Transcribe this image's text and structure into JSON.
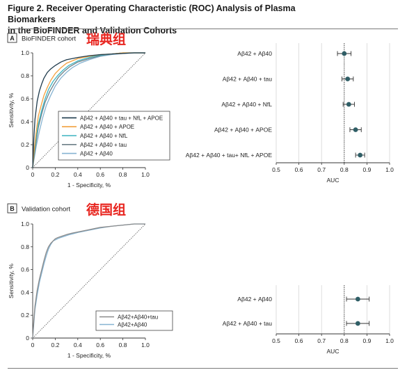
{
  "figure": {
    "title_line1": "Figure 2. Receiver Operating Characteristic (ROC) Analysis of Plasma Biomarkers",
    "title_line2": "in the BioFINDER and Validation Cohorts"
  },
  "panels": {
    "A": {
      "letter": "A",
      "name": "BioFINDER cohort",
      "annotation": "瑞典组"
    },
    "B": {
      "letter": "B",
      "name": "Validation cohort",
      "annotation": "德国组"
    }
  },
  "colors": {
    "annotation": "#e8251f",
    "point": "#2f5e66",
    "diagonal": "#555555",
    "gridline": "#d6d6d6"
  },
  "chart_data": [
    {
      "id": "A-roc",
      "type": "line",
      "xlabel": "1 - Specificity, %",
      "ylabel": "Sensitivity, %",
      "xlim": [
        0,
        1
      ],
      "ylim": [
        0,
        1
      ],
      "xticks": [
        "0",
        "0.2",
        "0.4",
        "0.6",
        "0.8",
        "1.0"
      ],
      "yticks": [
        "0",
        "0.2",
        "0.4",
        "0.6",
        "0.8",
        "1.0"
      ],
      "legend_position": "bottom-right",
      "reference_line": "diagonal",
      "series": [
        {
          "name": "Aβ42 + Aβ40 + tau + NfL + APOE",
          "color": "#1e3a4c",
          "x": [
            0,
            0.01,
            0.02,
            0.04,
            0.06,
            0.08,
            0.1,
            0.13,
            0.16,
            0.2,
            0.25,
            0.3,
            0.4,
            0.5,
            0.6,
            0.7,
            0.8,
            0.9,
            1.0
          ],
          "y": [
            0,
            0.25,
            0.42,
            0.58,
            0.67,
            0.73,
            0.78,
            0.83,
            0.86,
            0.89,
            0.92,
            0.94,
            0.96,
            0.975,
            0.985,
            0.99,
            0.995,
            1.0,
            1.0
          ]
        },
        {
          "name": "Aβ42 + Aβ40 + APOE",
          "color": "#f2a03d",
          "x": [
            0,
            0.01,
            0.03,
            0.05,
            0.08,
            0.1,
            0.13,
            0.16,
            0.2,
            0.25,
            0.3,
            0.4,
            0.5,
            0.6,
            0.7,
            0.8,
            0.9,
            1.0
          ],
          "y": [
            0,
            0.12,
            0.3,
            0.45,
            0.56,
            0.63,
            0.7,
            0.76,
            0.82,
            0.87,
            0.91,
            0.95,
            0.97,
            0.985,
            0.99,
            1.0,
            1.0,
            1.0
          ]
        },
        {
          "name": "Aβ42 + Aβ40 + NfL",
          "color": "#3bb4c1",
          "x": [
            0,
            0.01,
            0.03,
            0.05,
            0.08,
            0.11,
            0.14,
            0.18,
            0.22,
            0.27,
            0.32,
            0.4,
            0.5,
            0.6,
            0.7,
            0.8,
            0.9,
            1.0
          ],
          "y": [
            0,
            0.1,
            0.25,
            0.38,
            0.5,
            0.6,
            0.68,
            0.75,
            0.8,
            0.85,
            0.89,
            0.93,
            0.96,
            0.98,
            0.99,
            1.0,
            1.0,
            1.0
          ]
        },
        {
          "name": "Aβ42 + Aβ40 + tau",
          "color": "#6c7f87",
          "x": [
            0,
            0.01,
            0.03,
            0.05,
            0.08,
            0.11,
            0.15,
            0.19,
            0.23,
            0.28,
            0.33,
            0.4,
            0.5,
            0.6,
            0.7,
            0.8,
            0.9,
            1.0
          ],
          "y": [
            0,
            0.08,
            0.22,
            0.35,
            0.47,
            0.57,
            0.66,
            0.73,
            0.79,
            0.84,
            0.88,
            0.92,
            0.95,
            0.975,
            0.99,
            1.0,
            1.0,
            1.0
          ]
        },
        {
          "name": "Aβ42 + Aβ40",
          "color": "#86b3d1",
          "x": [
            0,
            0.01,
            0.03,
            0.06,
            0.09,
            0.12,
            0.16,
            0.2,
            0.25,
            0.3,
            0.35,
            0.42,
            0.5,
            0.6,
            0.7,
            0.8,
            0.9,
            1.0
          ],
          "y": [
            0,
            0.06,
            0.18,
            0.32,
            0.44,
            0.54,
            0.63,
            0.71,
            0.78,
            0.83,
            0.87,
            0.91,
            0.94,
            0.97,
            0.985,
            0.995,
            1.0,
            1.0
          ]
        }
      ]
    },
    {
      "id": "A-auc",
      "type": "scatter",
      "xlabel": "AUC",
      "xlim": [
        0.5,
        1.0
      ],
      "xticks": [
        "0.5",
        "0.6",
        "0.7",
        "0.8",
        "0.9",
        "1.0"
      ],
      "reference_x": 0.8,
      "grid": true,
      "rows": [
        {
          "label": "Aβ42 + Aβ40",
          "auc": 0.8,
          "lo": 0.77,
          "hi": 0.83
        },
        {
          "label": "Aβ42 + Aβ40 + tau",
          "auc": 0.815,
          "lo": 0.79,
          "hi": 0.84
        },
        {
          "label": "Aβ42 + Aβ40 + NfL",
          "auc": 0.82,
          "lo": 0.795,
          "hi": 0.845
        },
        {
          "label": "Aβ42 + Aβ40 + APOE",
          "auc": 0.85,
          "lo": 0.825,
          "hi": 0.875
        },
        {
          "label": "Aβ42 + Aβ40 + tau+ NfL + APOE",
          "auc": 0.87,
          "lo": 0.85,
          "hi": 0.89
        }
      ]
    },
    {
      "id": "B-roc",
      "type": "line",
      "xlabel": "1 - Specificity, %",
      "ylabel": "Sensitivity, %",
      "xlim": [
        0,
        1
      ],
      "ylim": [
        0,
        1
      ],
      "xticks": [
        "0",
        "0.2",
        "0.4",
        "0.6",
        "0.8",
        "1.0"
      ],
      "yticks": [
        "0",
        "0.2",
        "0.4",
        "0.6",
        "0.8",
        "1.0"
      ],
      "legend_position": "bottom-right",
      "reference_line": "diagonal",
      "series": [
        {
          "name": "Aβ42+Aβ40+tau",
          "color": "#8a8a8a",
          "x": [
            0,
            0.005,
            0.01,
            0.02,
            0.04,
            0.06,
            0.08,
            0.1,
            0.12,
            0.14,
            0.16,
            0.18,
            0.2,
            0.22,
            0.25,
            0.28,
            0.31,
            0.35,
            0.4,
            0.45,
            0.5,
            0.55,
            0.6,
            0.7,
            0.8,
            0.9,
            1.0
          ],
          "y": [
            0,
            0.08,
            0.15,
            0.28,
            0.42,
            0.52,
            0.6,
            0.68,
            0.75,
            0.8,
            0.83,
            0.85,
            0.87,
            0.88,
            0.89,
            0.9,
            0.91,
            0.92,
            0.93,
            0.94,
            0.95,
            0.96,
            0.97,
            0.98,
            0.99,
            1.0,
            1.0
          ]
        },
        {
          "name": "Aβ42+Aβ40",
          "color": "#86b3d1",
          "x": [
            0,
            0.005,
            0.01,
            0.02,
            0.04,
            0.06,
            0.08,
            0.1,
            0.12,
            0.14,
            0.16,
            0.18,
            0.2,
            0.23,
            0.26,
            0.29,
            0.32,
            0.36,
            0.4,
            0.45,
            0.5,
            0.55,
            0.6,
            0.7,
            0.8,
            0.9,
            1.0
          ],
          "y": [
            0,
            0.06,
            0.13,
            0.25,
            0.38,
            0.49,
            0.57,
            0.65,
            0.72,
            0.78,
            0.82,
            0.85,
            0.86,
            0.875,
            0.885,
            0.895,
            0.905,
            0.915,
            0.925,
            0.935,
            0.945,
            0.955,
            0.965,
            0.98,
            0.99,
            1.0,
            1.0
          ]
        }
      ]
    },
    {
      "id": "B-auc",
      "type": "scatter",
      "xlabel": "AUC",
      "xlim": [
        0.5,
        1.0
      ],
      "xticks": [
        "0.5",
        "0.6",
        "0.7",
        "0.8",
        "0.9",
        "1.0"
      ],
      "reference_x": 0.8,
      "grid": true,
      "rows": [
        {
          "label": "Aβ42 + Aβ40",
          "auc": 0.86,
          "lo": 0.81,
          "hi": 0.91
        },
        {
          "label": "Aβ42 + Aβ40 + tau",
          "auc": 0.86,
          "lo": 0.81,
          "hi": 0.91
        }
      ]
    }
  ]
}
